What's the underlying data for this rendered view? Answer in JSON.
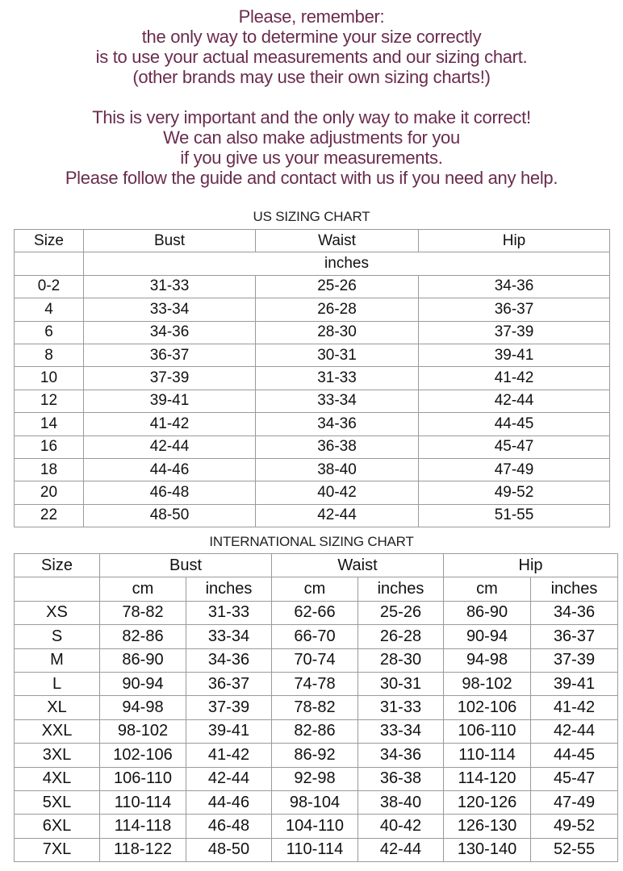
{
  "intro": {
    "lines_1": [
      "Please, remember:",
      "the only way to determine your size correctly",
      "is to use your actual measurements and our sizing chart.",
      "(other brands may use their own sizing charts!)"
    ],
    "lines_2": [
      "This is very important and the only way to make it correct!",
      "We can also make adjustments for you",
      "if you give us your measurements.",
      "Please follow the guide and contact with us if you need any help."
    ],
    "text_color": "#6a2c4e"
  },
  "us_chart": {
    "title": "US SIZING CHART",
    "headers": [
      "Size",
      "Bust",
      "Waist",
      "Hip"
    ],
    "unit": "inches",
    "rows": [
      [
        "0-2",
        "31-33",
        "25-26",
        "34-36"
      ],
      [
        "4",
        "33-34",
        "26-28",
        "36-37"
      ],
      [
        "6",
        "34-36",
        "28-30",
        "37-39"
      ],
      [
        "8",
        "36-37",
        "30-31",
        "39-41"
      ],
      [
        "10",
        "37-39",
        "31-33",
        "41-42"
      ],
      [
        "12",
        "39-41",
        "33-34",
        "42-44"
      ],
      [
        "14",
        "41-42",
        "34-36",
        "44-45"
      ],
      [
        "16",
        "42-44",
        "36-38",
        "45-47"
      ],
      [
        "18",
        "44-46",
        "38-40",
        "47-49"
      ],
      [
        "20",
        "46-48",
        "40-42",
        "49-52"
      ],
      [
        "22",
        "48-50",
        "42-44",
        "51-55"
      ]
    ]
  },
  "intl_chart": {
    "title": "INTERNATIONAL SIZING CHART",
    "headers": [
      "Size",
      "Bust",
      "Waist",
      "Hip"
    ],
    "subheaders": [
      "cm",
      "inches",
      "cm",
      "inches",
      "cm",
      "inches"
    ],
    "rows": [
      [
        "XS",
        "78-82",
        "31-33",
        "62-66",
        "25-26",
        "86-90",
        "34-36"
      ],
      [
        "S",
        "82-86",
        "33-34",
        "66-70",
        "26-28",
        "90-94",
        "36-37"
      ],
      [
        "M",
        "86-90",
        "34-36",
        "70-74",
        "28-30",
        "94-98",
        "37-39"
      ],
      [
        "L",
        "90-94",
        "36-37",
        "74-78",
        "30-31",
        "98-102",
        "39-41"
      ],
      [
        "XL",
        "94-98",
        "37-39",
        "78-82",
        "31-33",
        "102-106",
        "41-42"
      ],
      [
        "XXL",
        "98-102",
        "39-41",
        "82-86",
        "33-34",
        "106-110",
        "42-44"
      ],
      [
        "3XL",
        "102-106",
        "41-42",
        "86-92",
        "34-36",
        "110-114",
        "44-45"
      ],
      [
        "4XL",
        "106-110",
        "42-44",
        "92-98",
        "36-38",
        "114-120",
        "45-47"
      ],
      [
        "5XL",
        "110-114",
        "44-46",
        "98-104",
        "38-40",
        "120-126",
        "47-49"
      ],
      [
        "6XL",
        "114-118",
        "46-48",
        "104-110",
        "40-42",
        "126-130",
        "49-52"
      ],
      [
        "7XL",
        "118-122",
        "48-50",
        "110-114",
        "42-44",
        "130-140",
        "52-55"
      ]
    ]
  }
}
